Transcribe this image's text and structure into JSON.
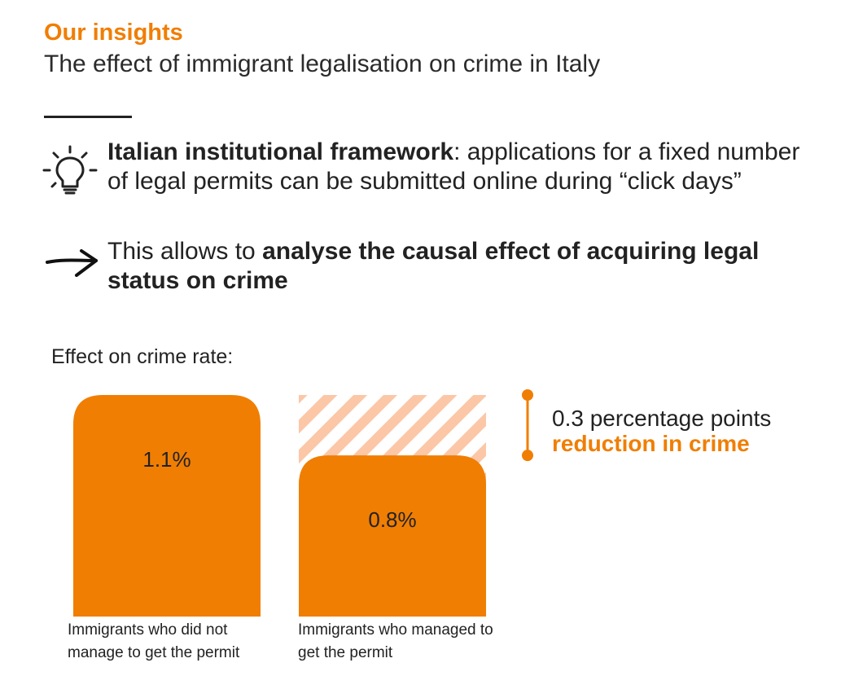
{
  "header": {
    "eyebrow": "Our insights",
    "title": "The effect of immigrant legalisation on crime in Italy"
  },
  "points": [
    {
      "icon": "lightbulb-icon",
      "bold": "Italian institutional framework",
      "rest": ": applications for a fixed number of legal permits can be submitted online during “click days”"
    },
    {
      "icon": "arrow-right-icon",
      "lead": "This allows to ",
      "bold": "analyse the causal effect of acquiring legal status on crime"
    }
  ],
  "chart_label": "Effect on crime rate:",
  "chart_data": {
    "type": "bar",
    "categories": [
      "Immigrants who did not manage to get the permit",
      "Immigrants who managed to get the permit"
    ],
    "values": [
      1.1,
      0.8
    ],
    "value_labels": [
      "1.1%",
      "0.8%"
    ],
    "unit": "%",
    "reference_value": 1.1,
    "ylim": [
      0,
      1.1
    ],
    "grid": false,
    "annotation": {
      "line1": "0.3 percentage points",
      "line2": "reduction in crime"
    }
  },
  "colors": {
    "accent": "#f07e03",
    "hatch": "#fbc7a7",
    "text": "#222222"
  }
}
